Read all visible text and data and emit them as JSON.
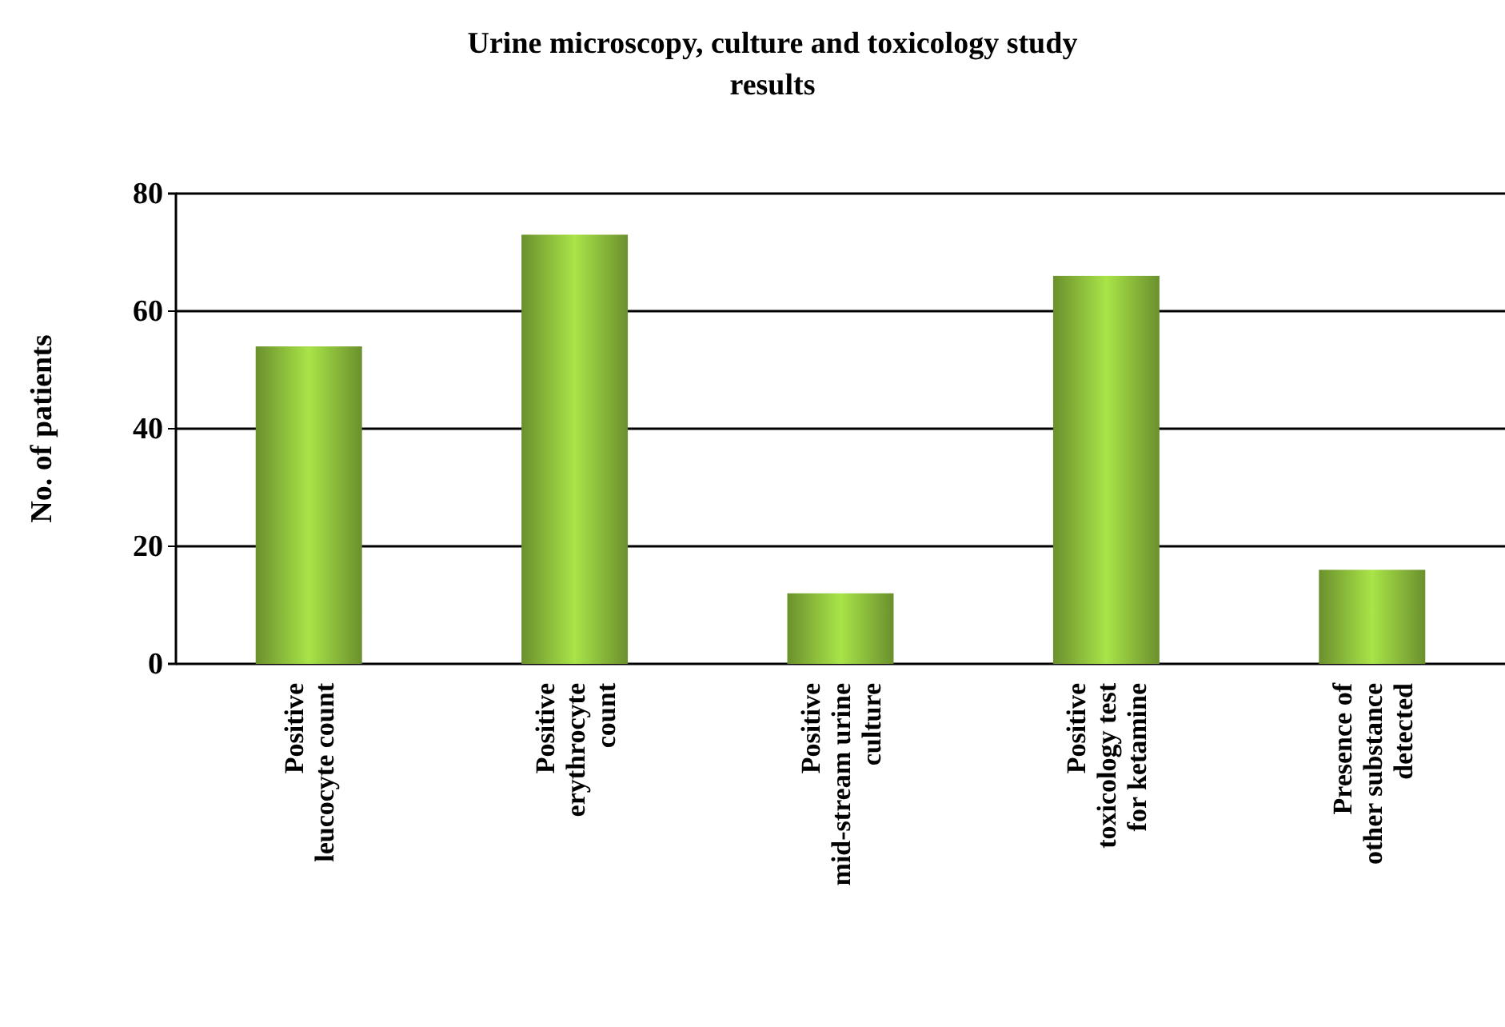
{
  "chart_data": {
    "type": "bar",
    "title": "Urine microscopy, culture and toxicology study results",
    "ylabel": "No. of patients",
    "categories": [
      "Positive leucocyte count",
      "Positive erythrocyte count",
      "Positive mid-stream urine culture",
      "Positive toxicology test for ketamine",
      "Presence of other substance detected"
    ],
    "values": [
      54,
      73,
      12,
      66,
      16
    ],
    "color": "#8dbf3c",
    "ylim": [
      0,
      80
    ],
    "yticks": [
      0,
      20,
      40,
      60,
      80
    ],
    "grid": "y"
  }
}
